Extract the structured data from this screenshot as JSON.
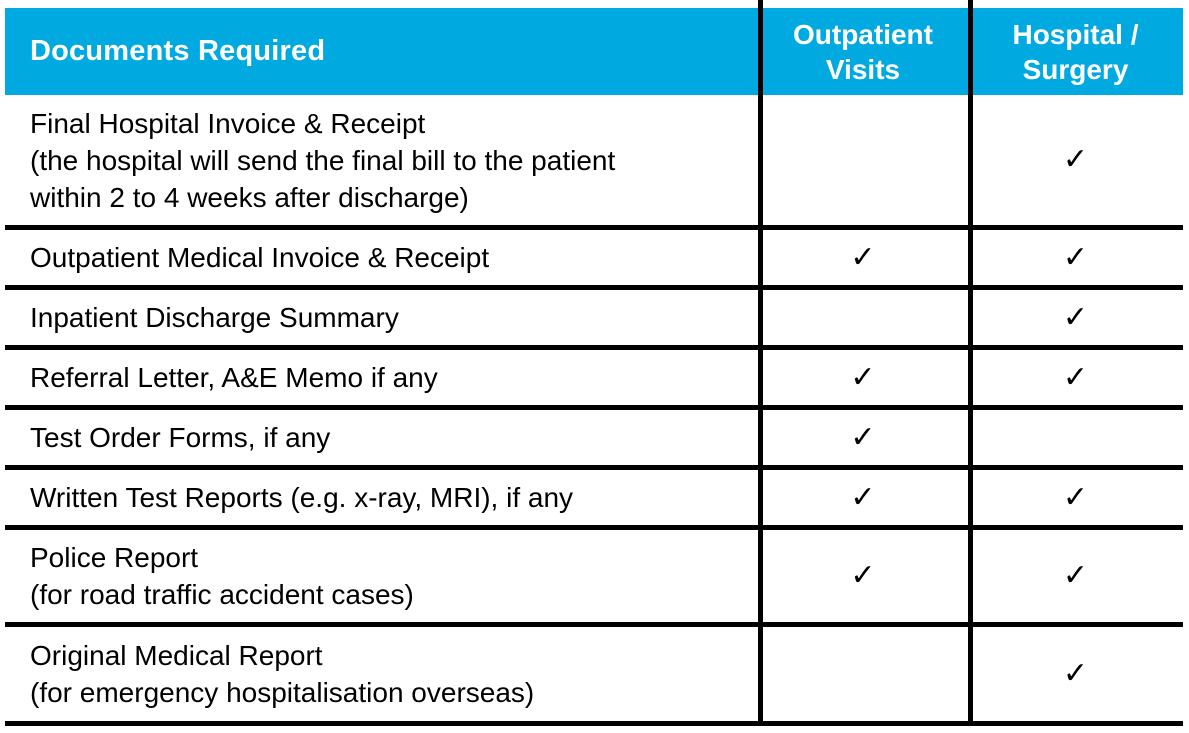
{
  "colors": {
    "header_bg": "#00a9e0",
    "header_text": "#ffffff",
    "body_text": "#000000",
    "grid_line": "#000000"
  },
  "header": {
    "documents_label": "Documents Required",
    "outpatient_label": "Outpatient\nVisits",
    "hospital_label": "Hospital /\nSurgery"
  },
  "rows": [
    {
      "label": "Final Hospital Invoice & Receipt",
      "note": "(the hospital will send the final bill to the patient\nwithin 2 to 4 weeks after discharge)",
      "outpatient": "",
      "hospital": "✓"
    },
    {
      "label": "Outpatient Medical Invoice & Receipt",
      "note": "",
      "outpatient": "✓",
      "hospital": "✓"
    },
    {
      "label": "Inpatient Discharge Summary",
      "note": "",
      "outpatient": "",
      "hospital": "✓"
    },
    {
      "label": "Referral Letter, A&E Memo if any",
      "note": "",
      "outpatient": "✓",
      "hospital": "✓"
    },
    {
      "label": "Test Order Forms, if any",
      "note": "",
      "outpatient": "✓",
      "hospital": ""
    },
    {
      "label": "Written Test Reports (e.g. x-ray, MRI), if any",
      "note": "",
      "outpatient": "✓",
      "hospital": "✓"
    },
    {
      "label": "Police Report",
      "note": "(for road traffic accident cases)",
      "outpatient": "✓",
      "hospital": "✓"
    },
    {
      "label": "Original Medical Report",
      "note": "(for emergency hospitalisation overseas)",
      "outpatient": "",
      "hospital": "✓"
    }
  ]
}
